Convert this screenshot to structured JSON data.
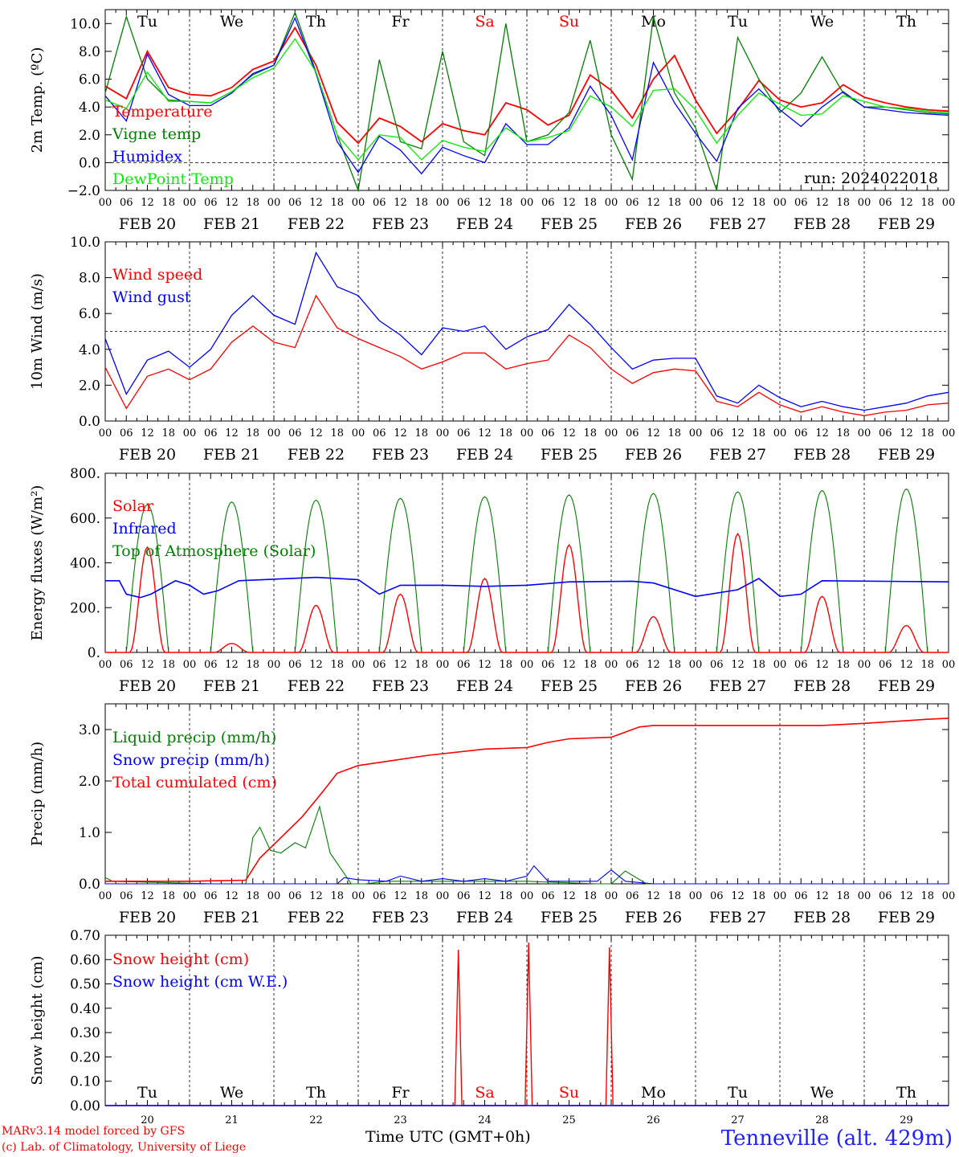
{
  "footer": {
    "model": "MARv3.14 model forced by GFS",
    "copyright": "(c) Lab. of Climatology, University of Liege",
    "time_label": "Time UTC (GMT+0h)",
    "station": "Tenneville (alt. 429m)",
    "run": "run: 2024022018"
  },
  "axes": {
    "hour_ticks": [
      "00",
      "06",
      "12",
      "18"
    ],
    "dates": [
      "FEB 20",
      "FEB 21",
      "FEB 22",
      "FEB 23",
      "FEB 24",
      "FEB 25",
      "FEB 26",
      "FEB 27",
      "FEB 28",
      "FEB 29"
    ],
    "days": [
      "Tu",
      "We",
      "Th",
      "Fr",
      "Sa",
      "Su",
      "Mo",
      "Tu",
      "We",
      "Th"
    ],
    "day_numbers": [
      "20",
      "21",
      "22",
      "23",
      "24",
      "25",
      "26",
      "27",
      "28",
      "29"
    ],
    "weekend_days": [
      "Sa",
      "Su"
    ]
  },
  "colors": {
    "red": "#ff0000",
    "green": "#008000",
    "blue": "#0000ff",
    "lightgreen": "#00ee00",
    "weekend": "#ff0000"
  },
  "chart_data": [
    {
      "type": "line",
      "ylabel": "2m Temp. (ºC)",
      "ylim": [
        -2,
        11
      ],
      "yticks": [
        "−2.0",
        "0.0",
        "2.0",
        "4.0",
        "6.0",
        "8.0",
        "10.0"
      ],
      "ytick_values": [
        -2,
        0,
        2,
        4,
        6,
        8,
        10
      ],
      "reference_line": 0,
      "x_hours": [
        0,
        6,
        12,
        18,
        24,
        30,
        36,
        42,
        48,
        54,
        60,
        66,
        72,
        78,
        84,
        90,
        96,
        102,
        108,
        114,
        120,
        126,
        132,
        138,
        144,
        150,
        156,
        162,
        168,
        174,
        180,
        186,
        192,
        198,
        204,
        210,
        216,
        222,
        228,
        234,
        240
      ],
      "series": [
        {
          "name": "Temperature",
          "color": "red",
          "values": [
            5.5,
            4.6,
            8.0,
            5.4,
            4.9,
            4.8,
            5.4,
            6.7,
            7.3,
            9.7,
            7.0,
            2.9,
            1.4,
            3.2,
            2.6,
            1.5,
            2.8,
            2.3,
            2.0,
            4.3,
            3.8,
            2.7,
            3.4,
            6.3,
            5.2,
            3.2,
            6.0,
            7.7,
            4.5,
            2.1,
            3.8,
            5.9,
            4.5,
            4.0,
            4.3,
            5.6,
            4.7,
            4.3,
            4.0,
            3.8,
            3.7
          ]
        },
        {
          "name": "Vigne temp",
          "color": "green",
          "values": [
            5.0,
            10.5,
            6.0,
            4.5,
            4.4,
            4.3,
            5.1,
            6.3,
            7.0,
            10.8,
            6.5,
            2.0,
            -2.0,
            7.4,
            1.5,
            1.0,
            8.0,
            1.5,
            0.5,
            10.0,
            1.5,
            2.0,
            3.6,
            8.8,
            2.0,
            -1.2,
            10.5,
            5.0,
            2.5,
            -2.0,
            9.0,
            6.0,
            3.6,
            5.0,
            7.6,
            5.0,
            4.0,
            4.0,
            3.8,
            3.6,
            3.5
          ]
        },
        {
          "name": "Humidex",
          "color": "blue",
          "values": [
            4.8,
            3.0,
            7.8,
            4.9,
            4.1,
            4.1,
            5.0,
            6.4,
            7.0,
            10.4,
            6.4,
            1.5,
            -0.7,
            1.9,
            0.9,
            -0.8,
            1.1,
            0.5,
            0.0,
            2.8,
            1.3,
            1.3,
            2.5,
            5.5,
            3.4,
            0.2,
            7.2,
            4.3,
            2.1,
            0.1,
            3.9,
            5.3,
            3.8,
            2.6,
            4.0,
            5.1,
            4.0,
            3.8,
            3.6,
            3.5,
            3.4
          ]
        },
        {
          "name": "DewPoint Temp",
          "color": "lightgreen",
          "values": [
            4.5,
            3.9,
            6.5,
            4.4,
            4.4,
            4.3,
            5.1,
            6.1,
            6.8,
            8.9,
            6.5,
            2.0,
            0.2,
            2.0,
            1.8,
            0.2,
            1.6,
            1.1,
            0.8,
            2.5,
            1.5,
            1.8,
            2.3,
            4.8,
            4.0,
            2.6,
            5.2,
            5.3,
            3.8,
            1.4,
            3.4,
            5.0,
            4.2,
            3.4,
            3.5,
            4.8,
            4.4,
            4.0,
            3.9,
            3.7,
            3.6
          ]
        }
      ]
    },
    {
      "type": "line",
      "ylabel": "10m Wind (m/s)",
      "ylim": [
        0,
        10
      ],
      "yticks": [
        "0.0",
        "2.0",
        "4.0",
        "6.0",
        "8.0",
        "10.0"
      ],
      "ytick_values": [
        0,
        2,
        4,
        6,
        8,
        10
      ],
      "reference_line": 5,
      "x_hours": [
        0,
        6,
        12,
        18,
        24,
        30,
        36,
        42,
        48,
        54,
        60,
        66,
        72,
        78,
        84,
        90,
        96,
        102,
        108,
        114,
        120,
        126,
        132,
        138,
        144,
        150,
        156,
        162,
        168,
        174,
        180,
        186,
        192,
        198,
        204,
        210,
        216,
        222,
        228,
        234,
        240
      ],
      "series": [
        {
          "name": "Wind speed",
          "color": "red",
          "values": [
            3.0,
            0.7,
            2.5,
            2.9,
            2.3,
            2.9,
            4.4,
            5.3,
            4.4,
            4.1,
            7.0,
            5.2,
            4.6,
            4.1,
            3.6,
            2.9,
            3.3,
            3.8,
            3.8,
            2.9,
            3.2,
            3.4,
            4.8,
            4.1,
            2.9,
            2.1,
            2.7,
            2.9,
            2.8,
            1.1,
            0.8,
            1.6,
            0.9,
            0.5,
            0.8,
            0.5,
            0.3,
            0.5,
            0.6,
            0.9,
            1.0
          ]
        },
        {
          "name": "Wind gust",
          "color": "blue",
          "values": [
            4.6,
            1.5,
            3.4,
            3.9,
            3.0,
            4.0,
            5.9,
            7.0,
            5.9,
            5.4,
            9.4,
            7.5,
            7.0,
            5.6,
            4.8,
            3.7,
            5.2,
            5.0,
            5.3,
            4.0,
            4.7,
            5.1,
            6.5,
            5.4,
            4.1,
            2.9,
            3.4,
            3.5,
            3.5,
            1.4,
            1.0,
            2.0,
            1.3,
            0.8,
            1.1,
            0.8,
            0.6,
            0.8,
            1.0,
            1.4,
            1.6
          ]
        }
      ]
    },
    {
      "type": "line",
      "ylabel": "Energy fluxes (W/m²)",
      "ylim": [
        0,
        800
      ],
      "yticks": [
        "0.",
        "200.",
        "400.",
        "600.",
        "800."
      ],
      "ytick_values": [
        0,
        200,
        400,
        600,
        800
      ],
      "days_tod_peak": [
        660,
        672,
        680,
        688,
        695,
        703,
        710,
        717,
        723,
        730
      ],
      "days_solar_peak": [
        470,
        40,
        210,
        260,
        330,
        480,
        160,
        530,
        250,
        120
      ],
      "infrared": [
        {
          "h": 0,
          "v": 320
        },
        {
          "h": 4,
          "v": 320
        },
        {
          "h": 6,
          "v": 260
        },
        {
          "h": 10,
          "v": 245
        },
        {
          "h": 13,
          "v": 260
        },
        {
          "h": 20,
          "v": 320
        },
        {
          "h": 24,
          "v": 300
        },
        {
          "h": 28,
          "v": 260
        },
        {
          "h": 32,
          "v": 275
        },
        {
          "h": 38,
          "v": 320
        },
        {
          "h": 60,
          "v": 335
        },
        {
          "h": 72,
          "v": 325
        },
        {
          "h": 78,
          "v": 260
        },
        {
          "h": 84,
          "v": 300
        },
        {
          "h": 96,
          "v": 300
        },
        {
          "h": 108,
          "v": 295
        },
        {
          "h": 120,
          "v": 300
        },
        {
          "h": 132,
          "v": 315
        },
        {
          "h": 150,
          "v": 318
        },
        {
          "h": 156,
          "v": 310
        },
        {
          "h": 168,
          "v": 250
        },
        {
          "h": 180,
          "v": 280
        },
        {
          "h": 186,
          "v": 330
        },
        {
          "h": 192,
          "v": 250
        },
        {
          "h": 198,
          "v": 260
        },
        {
          "h": 204,
          "v": 320
        },
        {
          "h": 240,
          "v": 315
        }
      ]
    },
    {
      "type": "line",
      "ylabel": "Precip (mm/h)",
      "ylim": [
        0,
        3.5
      ],
      "yticks": [
        "0.0",
        "1.0",
        "2.0",
        "3.0"
      ],
      "ytick_values": [
        0,
        1,
        2,
        3
      ],
      "series": [
        {
          "name": "Liquid precip (mm/h)",
          "color": "green",
          "points": [
            [
              0,
              0.12
            ],
            [
              2,
              0.05
            ],
            [
              30,
              0.0
            ],
            [
              40,
              0.0
            ],
            [
              42,
              0.9
            ],
            [
              44,
              1.1
            ],
            [
              47,
              0.65
            ],
            [
              50,
              0.6
            ],
            [
              54,
              0.8
            ],
            [
              57,
              0.7
            ],
            [
              61,
              1.5
            ],
            [
              64,
              0.6
            ],
            [
              68,
              0.2
            ],
            [
              70,
              0.0
            ],
            [
              74,
              0.0
            ],
            [
              80,
              0.05
            ],
            [
              100,
              0.05
            ],
            [
              120,
              0.05
            ],
            [
              140,
              0.0
            ],
            [
              144,
              0.0
            ],
            [
              148,
              0.25
            ],
            [
              154,
              0.0
            ],
            [
              240,
              0.0
            ]
          ]
        },
        {
          "name": "Snow precip (mm/h)",
          "color": "blue",
          "points": [
            [
              0,
              0.0
            ],
            [
              66,
              0.0
            ],
            [
              68,
              0.12
            ],
            [
              72,
              0.08
            ],
            [
              80,
              0.05
            ],
            [
              84,
              0.15
            ],
            [
              90,
              0.05
            ],
            [
              96,
              0.1
            ],
            [
              102,
              0.05
            ],
            [
              108,
              0.1
            ],
            [
              114,
              0.05
            ],
            [
              120,
              0.15
            ],
            [
              122,
              0.35
            ],
            [
              126,
              0.05
            ],
            [
              140,
              0.05
            ],
            [
              144,
              0.27
            ],
            [
              148,
              0.05
            ],
            [
              156,
              0.0
            ],
            [
              240,
              0.0
            ]
          ]
        },
        {
          "name": "Total cumulated (cm)",
          "color": "red",
          "points": [
            [
              0,
              0.05
            ],
            [
              24,
              0.05
            ],
            [
              40,
              0.07
            ],
            [
              44,
              0.5
            ],
            [
              50,
              0.9
            ],
            [
              56,
              1.3
            ],
            [
              62,
              1.8
            ],
            [
              66,
              2.15
            ],
            [
              72,
              2.3
            ],
            [
              80,
              2.38
            ],
            [
              92,
              2.5
            ],
            [
              108,
              2.62
            ],
            [
              120,
              2.65
            ],
            [
              126,
              2.75
            ],
            [
              132,
              2.82
            ],
            [
              144,
              2.85
            ],
            [
              152,
              3.05
            ],
            [
              156,
              3.08
            ],
            [
              204,
              3.08
            ],
            [
              216,
              3.12
            ],
            [
              234,
              3.2
            ],
            [
              240,
              3.22
            ]
          ]
        }
      ]
    },
    {
      "type": "line",
      "ylabel": "Snow height (cm)",
      "ylim": [
        0,
        0.7
      ],
      "yticks": [
        "0.00",
        "0.10",
        "0.20",
        "0.30",
        "0.40",
        "0.50",
        "0.60",
        "0.70"
      ],
      "ytick_values": [
        0,
        0.1,
        0.2,
        0.3,
        0.4,
        0.5,
        0.6,
        0.7
      ],
      "series": [
        {
          "name": "Snow height (cm)",
          "color": "red",
          "points": [
            [
              0,
              0
            ],
            [
              99.5,
              0
            ],
            [
              100.5,
              0.64
            ],
            [
              101.5,
              0
            ],
            [
              119.5,
              0
            ],
            [
              120.5,
              0.67
            ],
            [
              121.5,
              0
            ],
            [
              142.5,
              0
            ],
            [
              143.5,
              0.65
            ],
            [
              144.5,
              0
            ],
            [
              240,
              0
            ]
          ]
        },
        {
          "name": "Snow height (cm W.E.)",
          "color": "blue",
          "points": [
            [
              0,
              0
            ],
            [
              240,
              0
            ]
          ]
        }
      ]
    }
  ]
}
